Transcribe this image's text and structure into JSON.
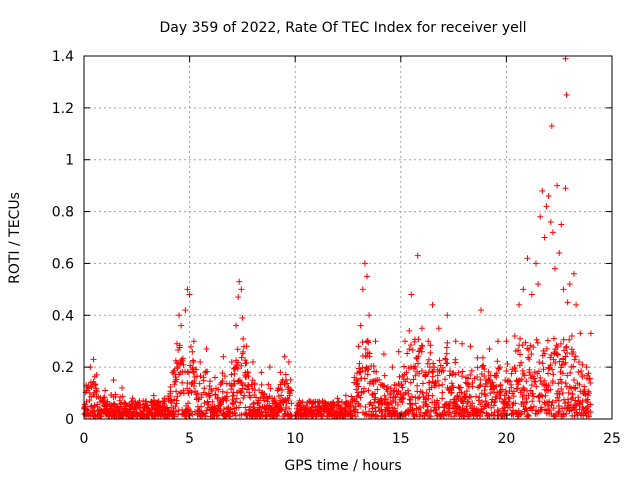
{
  "chart_data": {
    "type": "scatter",
    "title": "Day 359 of 2022, Rate Of TEC Index for receiver yell",
    "xlabel": "GPS time / hours",
    "ylabel": "ROTI / TECUs",
    "xlim": [
      0,
      25
    ],
    "ylim": [
      0,
      1.4
    ],
    "xticks": [
      0,
      5,
      10,
      15,
      20,
      25
    ],
    "xtick_labels": [
      "0",
      "5",
      "10",
      "15",
      "20",
      "25"
    ],
    "yticks": [
      0,
      0.2,
      0.4,
      0.6,
      0.8,
      1,
      1.2,
      1.4
    ],
    "ytick_labels": [
      "0",
      "0.2",
      "0.4",
      "0.6",
      "0.8",
      "1",
      "1.2",
      "1.4"
    ],
    "grid": true,
    "marker": "plus",
    "series": [
      {
        "name": "ROTI",
        "color": "#ff0000",
        "points": [
          [
            0.1,
            0.13
          ],
          [
            0.3,
            0.2
          ],
          [
            0.45,
            0.23
          ],
          [
            0.6,
            0.17
          ],
          [
            1.0,
            0.11
          ],
          [
            1.4,
            0.15
          ],
          [
            1.8,
            0.12
          ],
          [
            2.3,
            0.08
          ],
          [
            2.8,
            0.07
          ],
          [
            3.3,
            0.09
          ],
          [
            3.8,
            0.08
          ],
          [
            4.2,
            0.18
          ],
          [
            4.4,
            0.29
          ],
          [
            4.5,
            0.4
          ],
          [
            4.6,
            0.36
          ],
          [
            4.8,
            0.42
          ],
          [
            4.9,
            0.5
          ],
          [
            5.0,
            0.48
          ],
          [
            5.2,
            0.3
          ],
          [
            5.5,
            0.22
          ],
          [
            5.8,
            0.27
          ],
          [
            6.2,
            0.16
          ],
          [
            6.6,
            0.24
          ],
          [
            7.0,
            0.22
          ],
          [
            7.2,
            0.36
          ],
          [
            7.3,
            0.47
          ],
          [
            7.35,
            0.53
          ],
          [
            7.45,
            0.5
          ],
          [
            7.5,
            0.39
          ],
          [
            7.7,
            0.28
          ],
          [
            8.0,
            0.22
          ],
          [
            8.4,
            0.18
          ],
          [
            8.8,
            0.2
          ],
          [
            9.3,
            0.18
          ],
          [
            9.5,
            0.24
          ],
          [
            9.7,
            0.22
          ],
          [
            10.2,
            0.07
          ],
          [
            10.8,
            0.06
          ],
          [
            11.3,
            0.07
          ],
          [
            11.8,
            0.05
          ],
          [
            12.0,
            0.08
          ],
          [
            12.4,
            0.09
          ],
          [
            12.8,
            0.16
          ],
          [
            13.0,
            0.28
          ],
          [
            13.1,
            0.36
          ],
          [
            13.2,
            0.5
          ],
          [
            13.3,
            0.6
          ],
          [
            13.4,
            0.55
          ],
          [
            13.5,
            0.4
          ],
          [
            13.8,
            0.3
          ],
          [
            14.2,
            0.25
          ],
          [
            14.6,
            0.2
          ],
          [
            14.9,
            0.26
          ],
          [
            15.2,
            0.3
          ],
          [
            15.4,
            0.34
          ],
          [
            15.5,
            0.48
          ],
          [
            15.8,
            0.63
          ],
          [
            16.0,
            0.35
          ],
          [
            16.3,
            0.3
          ],
          [
            16.5,
            0.44
          ],
          [
            16.8,
            0.35
          ],
          [
            17.2,
            0.4
          ],
          [
            17.6,
            0.3
          ],
          [
            17.9,
            0.29
          ],
          [
            18.3,
            0.28
          ],
          [
            18.8,
            0.42
          ],
          [
            19.2,
            0.27
          ],
          [
            19.6,
            0.3
          ],
          [
            20.0,
            0.3
          ],
          [
            20.4,
            0.32
          ],
          [
            20.6,
            0.44
          ],
          [
            20.8,
            0.5
          ],
          [
            21.0,
            0.62
          ],
          [
            21.2,
            0.48
          ],
          [
            21.4,
            0.6
          ],
          [
            21.5,
            0.52
          ],
          [
            21.6,
            0.78
          ],
          [
            21.7,
            0.88
          ],
          [
            21.8,
            0.7
          ],
          [
            21.9,
            0.82
          ],
          [
            22.0,
            0.86
          ],
          [
            22.1,
            0.76
          ],
          [
            22.2,
            0.72
          ],
          [
            22.3,
            0.58
          ],
          [
            22.4,
            0.9
          ],
          [
            22.5,
            0.64
          ],
          [
            22.6,
            0.75
          ],
          [
            22.7,
            0.5
          ],
          [
            22.8,
            0.89
          ],
          [
            22.9,
            0.45
          ],
          [
            23.0,
            0.52
          ],
          [
            23.1,
            0.32
          ],
          [
            23.2,
            0.56
          ],
          [
            23.3,
            0.44
          ],
          [
            23.5,
            0.33
          ],
          [
            23.8,
            0.2
          ],
          [
            24.0,
            0.33
          ],
          [
            22.15,
            1.13
          ],
          [
            22.85,
            1.25
          ],
          [
            22.8,
            1.39
          ]
        ]
      }
    ]
  }
}
